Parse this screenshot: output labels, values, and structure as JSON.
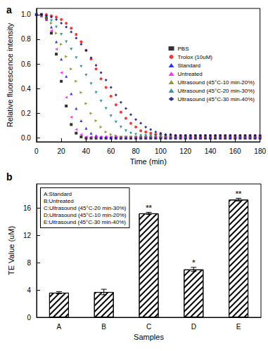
{
  "chart_data": [
    {
      "type": "scatter",
      "title": "a",
      "x_label": "Time (min)",
      "y_label": "Relative fluorescence intensity",
      "legend": "right",
      "grid": false,
      "xlim": [
        0,
        180
      ],
      "xticks": [
        0,
        20,
        40,
        60,
        80,
        100,
        120,
        140,
        160,
        180
      ],
      "ylim": [
        -0.03,
        1.05
      ],
      "yticks": [
        {
          "value": 0,
          "label": "0.0"
        },
        {
          "value": 0.2,
          "label": "0.2"
        },
        {
          "value": 0.4,
          "label": "0.4"
        },
        {
          "value": 0.6,
          "label": "0.6"
        },
        {
          "value": 0.8,
          "label": "0.8"
        },
        {
          "value": 1,
          "label": "1.0"
        }
      ],
      "x": [
        0,
        4,
        8,
        12,
        16,
        20,
        24,
        28,
        32,
        36,
        40,
        44,
        48,
        52,
        56,
        60,
        64,
        68,
        72,
        76,
        80,
        84,
        88,
        92,
        96,
        100,
        104,
        108,
        112,
        116,
        120,
        124,
        128,
        132,
        136,
        140,
        144,
        148,
        152,
        156,
        160,
        164,
        168,
        172,
        176,
        180
      ],
      "series": [
        {
          "name": "PBS",
          "color": "#000000",
          "marker": "square",
          "values": [
            1.0,
            1.0,
            0.97,
            0.85,
            0.68,
            0.46,
            0.26,
            0.11,
            0.04,
            0.01,
            0.0,
            0.0,
            0.0,
            0.0,
            0.0,
            0.0,
            0.0,
            0.0,
            0.0,
            0.0,
            0.0,
            0.0,
            0.0,
            0.0,
            0.0,
            0.0,
            0.0,
            0.0,
            0.0,
            0.0,
            0.0,
            0.0,
            0.0,
            0.0,
            0.0,
            0.0,
            0.0,
            0.0,
            0.0,
            0.0,
            0.0,
            0.0,
            0.0,
            0.0,
            0.0,
            0.0
          ]
        },
        {
          "name": "Trolox (10uM)",
          "color": "#ff0000",
          "marker": "circle",
          "values": [
            1.0,
            1.0,
            1.0,
            0.99,
            0.98,
            0.96,
            0.93,
            0.89,
            0.84,
            0.78,
            0.71,
            0.64,
            0.56,
            0.48,
            0.41,
            0.34,
            0.27,
            0.21,
            0.16,
            0.12,
            0.09,
            0.06,
            0.05,
            0.04,
            0.03,
            0.03,
            0.02,
            0.02,
            0.02,
            0.02,
            0.02,
            0.02,
            0.02,
            0.02,
            0.02,
            0.02,
            0.02,
            0.02,
            0.02,
            0.02,
            0.02,
            0.02,
            0.02,
            0.02,
            0.02,
            0.02
          ]
        },
        {
          "name": "Standard",
          "color": "#0000ff",
          "marker": "triangle",
          "values": [
            1.0,
            0.99,
            0.96,
            0.9,
            0.78,
            0.64,
            0.5,
            0.36,
            0.24,
            0.14,
            0.08,
            0.04,
            0.02,
            0.01,
            0.01,
            0.01,
            0.01,
            0.01,
            0.01,
            0.01,
            0.01,
            0.01,
            0.01,
            0.01,
            0.01,
            0.01,
            0.01,
            0.01,
            0.01,
            0.01,
            0.01,
            0.01,
            0.01,
            0.01,
            0.01,
            0.01,
            0.01,
            0.01,
            0.01,
            0.01,
            0.01,
            0.01,
            0.01,
            0.01,
            0.01,
            0.01
          ]
        },
        {
          "name": "Untreated",
          "color": "#ff00ff",
          "marker": "triangle-left",
          "values": [
            1.0,
            0.99,
            0.96,
            0.87,
            0.72,
            0.53,
            0.33,
            0.17,
            0.07,
            0.03,
            0.01,
            0.01,
            0.01,
            0.01,
            0.01,
            0.01,
            0.01,
            0.01,
            0.01,
            0.01,
            0.01,
            0.01,
            0.01,
            0.01,
            0.01,
            0.01,
            0.01,
            0.01,
            0.01,
            0.01,
            0.01,
            0.01,
            0.01,
            0.01,
            0.01,
            0.01,
            0.01,
            0.01,
            0.01,
            0.01,
            0.01,
            0.01,
            0.01,
            0.01,
            0.01,
            0.01
          ]
        },
        {
          "name": "Ultrasound (45°C-10 min-20%)",
          "color": "#808000",
          "marker": "triangle-right",
          "values": [
            1.0,
            0.99,
            0.97,
            0.93,
            0.85,
            0.76,
            0.66,
            0.56,
            0.46,
            0.37,
            0.28,
            0.2,
            0.14,
            0.09,
            0.05,
            0.03,
            0.02,
            0.01,
            0.01,
            0.01,
            0.01,
            0.01,
            0.01,
            0.01,
            0.01,
            0.01,
            0.01,
            0.01,
            0.01,
            0.01,
            0.01,
            0.01,
            0.01,
            0.01,
            0.01,
            0.01,
            0.01,
            0.01,
            0.01,
            0.01,
            0.01,
            0.01,
            0.01,
            0.01,
            0.01,
            0.01
          ]
        },
        {
          "name": "Ultrasound (45°C-20 min-30%)",
          "color": "#008080",
          "marker": "triangle-down",
          "values": [
            1.0,
            1.0,
            0.98,
            0.95,
            0.9,
            0.84,
            0.78,
            0.72,
            0.65,
            0.58,
            0.51,
            0.44,
            0.37,
            0.3,
            0.24,
            0.18,
            0.13,
            0.09,
            0.06,
            0.04,
            0.03,
            0.02,
            0.02,
            0.02,
            0.02,
            0.02,
            0.02,
            0.02,
            0.02,
            0.02,
            0.02,
            0.02,
            0.02,
            0.02,
            0.02,
            0.02,
            0.02,
            0.02,
            0.02,
            0.02,
            0.02,
            0.02,
            0.02,
            0.02,
            0.02,
            0.02
          ]
        },
        {
          "name": "Ultrasound (45°C-30 min-40%)",
          "color": "#000080",
          "marker": "diamond",
          "values": [
            1.0,
            1.0,
            0.99,
            0.98,
            0.96,
            0.93,
            0.9,
            0.86,
            0.81,
            0.76,
            0.71,
            0.65,
            0.59,
            0.53,
            0.47,
            0.41,
            0.35,
            0.29,
            0.24,
            0.19,
            0.15,
            0.12,
            0.09,
            0.07,
            0.05,
            0.04,
            0.03,
            0.03,
            0.02,
            0.02,
            0.02,
            0.02,
            0.02,
            0.02,
            0.02,
            0.02,
            0.02,
            0.02,
            0.02,
            0.02,
            0.02,
            0.02,
            0.02,
            0.02,
            0.02,
            0.02
          ]
        }
      ]
    },
    {
      "type": "bar",
      "title": "b",
      "x_label": "Samples",
      "y_label": "TE Value (uM)",
      "grid": false,
      "categories": [
        "A",
        "B",
        "C",
        "D",
        "E"
      ],
      "values": [
        3.6,
        3.7,
        15.2,
        7.0,
        17.2
      ],
      "errors": [
        0.15,
        0.4,
        0.15,
        0.3,
        0.2
      ],
      "significance": [
        null,
        null,
        "**",
        "*",
        "**"
      ],
      "color": "#000000",
      "ylim": [
        0,
        19.5
      ],
      "yticks": [
        0,
        4,
        8,
        12,
        16
      ],
      "annotations": [
        "A:Standard",
        "B:Untreated",
        "C:Ultrasound (45°C-20 min-30%)",
        "D:Ultrasound (45°C-10 min-20%)",
        "E:Ultrasound (45°C-30 min-40%)"
      ]
    }
  ]
}
